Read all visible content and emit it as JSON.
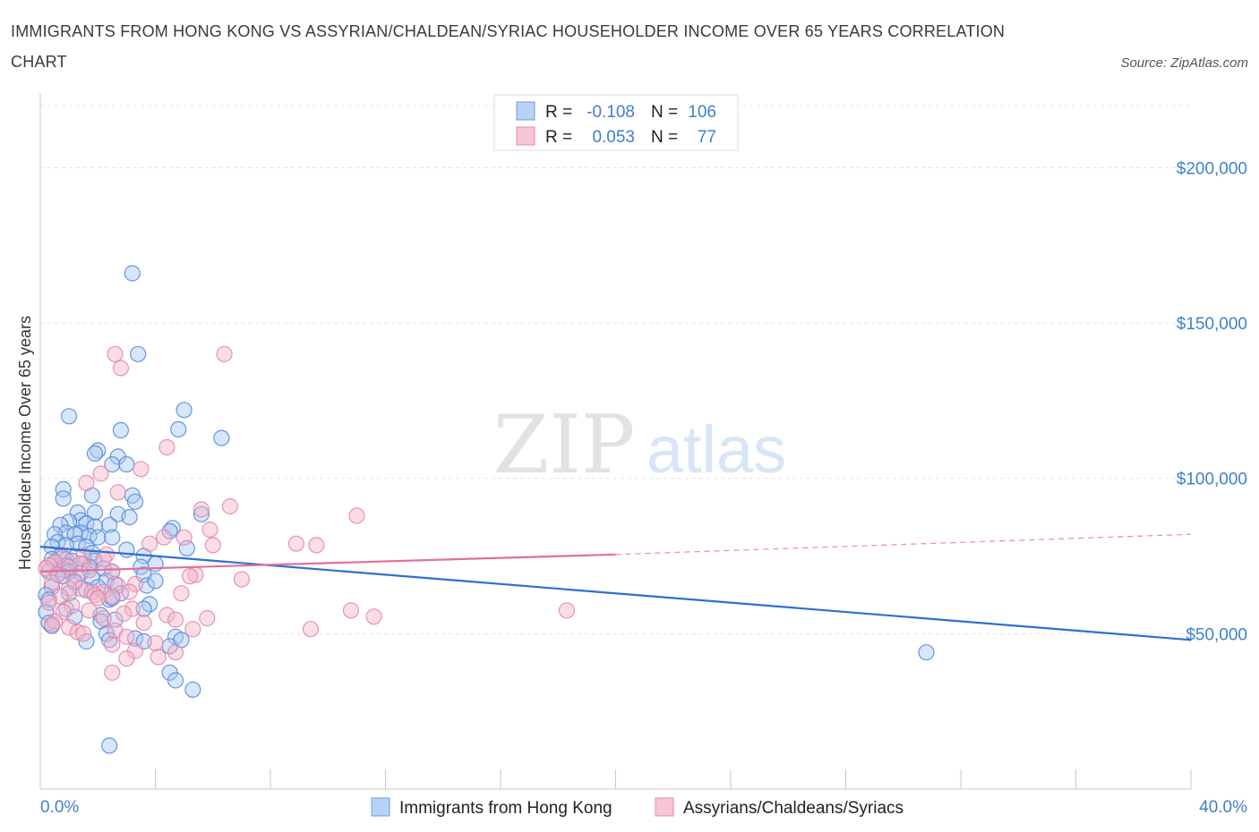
{
  "title": "IMMIGRANTS FROM HONG KONG VS ASSYRIAN/CHALDEAN/SYRIAC HOUSEHOLDER INCOME OVER 65 YEARS CORRELATION CHART",
  "source": "Source: ZipAtlas.com",
  "watermark": {
    "zip": "ZIP",
    "atlas": "atlas"
  },
  "colors": {
    "blue": "#3d7ad6",
    "blue_fill": "#a9c8f2",
    "pink": "#e0709a",
    "pink_fill": "#f4b3c8",
    "tick": "#3f7fd0"
  },
  "legend": {
    "r_label": "R =",
    "n_label": "N =",
    "rows": [
      {
        "r": "-0.108",
        "n": "106"
      },
      {
        "r": "0.053",
        "n": "77"
      }
    ]
  },
  "bottom_legend": [
    "Immigrants from Hong Kong",
    "Assyrians/Chaldeans/Syriacs"
  ],
  "chart_data": {
    "type": "scatter",
    "title": "IMMIGRANTS FROM HONG KONG VS ASSYRIAN/CHALDEAN/SYRIAC HOUSEHOLDER INCOME OVER 65 YEARS CORRELATION CHART",
    "xlabel": "",
    "ylabel": "Householder Income Over 65 years",
    "xlim": [
      0,
      40
    ],
    "ylim": [
      0,
      220000
    ],
    "x_tick_labels": [
      "0.0%",
      "40.0%"
    ],
    "y_ticks": [
      50000,
      100000,
      150000,
      200000
    ],
    "y_tick_labels": [
      "$50,000",
      "$100,000",
      "$150,000",
      "$200,000"
    ],
    "grid": true,
    "series": [
      {
        "name": "Immigrants from Hong Kong",
        "color": "#3d7ad6",
        "R": -0.108,
        "N": 106,
        "trend": {
          "x": [
            0,
            40
          ],
          "y": [
            78000,
            48000
          ]
        },
        "points": [
          [
            3.2,
            166000
          ],
          [
            3.4,
            140000
          ],
          [
            5.0,
            122000
          ],
          [
            1.0,
            120000
          ],
          [
            2.8,
            115500
          ],
          [
            4.8,
            115800
          ],
          [
            6.3,
            113000
          ],
          [
            2.0,
            109000
          ],
          [
            1.9,
            108000
          ],
          [
            2.7,
            107000
          ],
          [
            2.5,
            104500
          ],
          [
            3.0,
            104500
          ],
          [
            0.8,
            96500
          ],
          [
            3.2,
            94500
          ],
          [
            0.8,
            93500
          ],
          [
            1.8,
            94500
          ],
          [
            3.3,
            92500
          ],
          [
            1.3,
            89000
          ],
          [
            1.9,
            89000
          ],
          [
            2.7,
            88500
          ],
          [
            3.1,
            87500
          ],
          [
            5.6,
            88500
          ],
          [
            1.4,
            86500
          ],
          [
            1.0,
            86000
          ],
          [
            1.6,
            85500
          ],
          [
            0.7,
            85000
          ],
          [
            2.4,
            85000
          ],
          [
            1.9,
            84500
          ],
          [
            4.6,
            84000
          ],
          [
            4.5,
            83000
          ],
          [
            1.4,
            82500
          ],
          [
            0.9,
            82500
          ],
          [
            0.5,
            82000
          ],
          [
            1.2,
            82000
          ],
          [
            1.7,
            81500
          ],
          [
            2.0,
            81000
          ],
          [
            2.5,
            81000
          ],
          [
            0.6,
            79500
          ],
          [
            1.3,
            79000
          ],
          [
            0.9,
            78500
          ],
          [
            0.4,
            78000
          ],
          [
            1.6,
            78000
          ],
          [
            5.1,
            77500
          ],
          [
            3.0,
            77000
          ],
          [
            1.8,
            76000
          ],
          [
            0.7,
            75000
          ],
          [
            0.9,
            74000
          ],
          [
            0.4,
            74000
          ],
          [
            1.1,
            73500
          ],
          [
            1.9,
            73500
          ],
          [
            3.6,
            75000
          ],
          [
            0.5,
            73000
          ],
          [
            1.5,
            72500
          ],
          [
            0.9,
            72000
          ],
          [
            4.0,
            72500
          ],
          [
            1.7,
            71500
          ],
          [
            2.2,
            71000
          ],
          [
            3.5,
            71500
          ],
          [
            0.8,
            70500
          ],
          [
            1.0,
            70000
          ],
          [
            0.3,
            70000
          ],
          [
            1.4,
            69500
          ],
          [
            2.5,
            70000
          ],
          [
            0.6,
            69000
          ],
          [
            0.8,
            68500
          ],
          [
            1.8,
            68000
          ],
          [
            3.6,
            69000
          ],
          [
            2.3,
            67000
          ],
          [
            1.2,
            66500
          ],
          [
            2.6,
            66000
          ],
          [
            3.7,
            65500
          ],
          [
            4.0,
            67000
          ],
          [
            2.0,
            65000
          ],
          [
            0.4,
            65000
          ],
          [
            1.6,
            64000
          ],
          [
            1.0,
            63000
          ],
          [
            2.8,
            63000
          ],
          [
            0.2,
            62500
          ],
          [
            0.3,
            61000
          ],
          [
            2.4,
            61000
          ],
          [
            2.5,
            61500
          ],
          [
            3.8,
            59500
          ],
          [
            0.9,
            58000
          ],
          [
            0.2,
            57000
          ],
          [
            3.6,
            58000
          ],
          [
            1.2,
            55500
          ],
          [
            2.1,
            56000
          ],
          [
            2.1,
            54000
          ],
          [
            2.6,
            54500
          ],
          [
            0.3,
            53500
          ],
          [
            0.4,
            52500
          ],
          [
            2.3,
            50000
          ],
          [
            3.3,
            48500
          ],
          [
            4.7,
            49000
          ],
          [
            1.6,
            47500
          ],
          [
            2.4,
            48000
          ],
          [
            4.5,
            46000
          ],
          [
            3.6,
            47500
          ],
          [
            4.9,
            48000
          ],
          [
            4.5,
            37500
          ],
          [
            4.7,
            35000
          ],
          [
            5.3,
            32000
          ],
          [
            2.4,
            14000
          ],
          [
            30.8,
            44000
          ]
        ]
      },
      {
        "name": "Assyrians/Chaldeans/Syriacs",
        "color": "#e0709a",
        "R": 0.053,
        "N": 77,
        "trend_solid": {
          "x": [
            0,
            20
          ],
          "y": [
            70000,
            75500
          ]
        },
        "trend_dashed": {
          "x": [
            20,
            40
          ],
          "y": [
            75500,
            82000
          ]
        },
        "points": [
          [
            2.6,
            140000
          ],
          [
            6.4,
            140000
          ],
          [
            2.8,
            135500
          ],
          [
            4.4,
            110000
          ],
          [
            3.5,
            103000
          ],
          [
            2.1,
            101500
          ],
          [
            1.6,
            98500
          ],
          [
            2.7,
            95500
          ],
          [
            6.6,
            91000
          ],
          [
            5.6,
            90000
          ],
          [
            11.0,
            88000
          ],
          [
            5.9,
            83500
          ],
          [
            5.0,
            81000
          ],
          [
            4.3,
            81000
          ],
          [
            8.9,
            79000
          ],
          [
            3.8,
            79000
          ],
          [
            6.0,
            78500
          ],
          [
            9.6,
            78500
          ],
          [
            2.3,
            75500
          ],
          [
            1.5,
            75000
          ],
          [
            0.8,
            74500
          ],
          [
            2.2,
            74000
          ],
          [
            0.5,
            73000
          ],
          [
            1.4,
            72500
          ],
          [
            0.3,
            72000
          ],
          [
            1.0,
            71500
          ],
          [
            0.2,
            71000
          ],
          [
            1.7,
            70500
          ],
          [
            2.5,
            70000
          ],
          [
            5.4,
            69000
          ],
          [
            0.6,
            69000
          ],
          [
            5.2,
            68500
          ],
          [
            7.0,
            67500
          ],
          [
            1.2,
            67000
          ],
          [
            0.4,
            66500
          ],
          [
            3.3,
            66000
          ],
          [
            2.7,
            65500
          ],
          [
            1.4,
            64500
          ],
          [
            1.0,
            64500
          ],
          [
            1.8,
            63500
          ],
          [
            3.1,
            63500
          ],
          [
            2.2,
            63500
          ],
          [
            1.9,
            62500
          ],
          [
            2.5,
            62000
          ],
          [
            0.7,
            62000
          ],
          [
            2.0,
            61500
          ],
          [
            0.3,
            60000
          ],
          [
            4.9,
            63000
          ],
          [
            1.1,
            59000
          ],
          [
            3.2,
            58000
          ],
          [
            1.7,
            57500
          ],
          [
            0.8,
            57000
          ],
          [
            2.9,
            56500
          ],
          [
            4.4,
            56000
          ],
          [
            18.3,
            57500
          ],
          [
            10.8,
            57500
          ],
          [
            11.6,
            55500
          ],
          [
            2.2,
            55000
          ],
          [
            5.8,
            55000
          ],
          [
            3.6,
            53500
          ],
          [
            4.7,
            54500
          ],
          [
            0.5,
            54000
          ],
          [
            1.0,
            52000
          ],
          [
            9.4,
            51500
          ],
          [
            5.3,
            51500
          ],
          [
            2.6,
            51000
          ],
          [
            1.3,
            50500
          ],
          [
            1.5,
            50000
          ],
          [
            3.0,
            49000
          ],
          [
            4.0,
            47000
          ],
          [
            2.5,
            46500
          ],
          [
            3.3,
            44500
          ],
          [
            4.7,
            44000
          ],
          [
            3.0,
            42000
          ],
          [
            4.1,
            42500
          ],
          [
            2.5,
            37500
          ],
          [
            0.4,
            53000
          ]
        ]
      }
    ]
  }
}
